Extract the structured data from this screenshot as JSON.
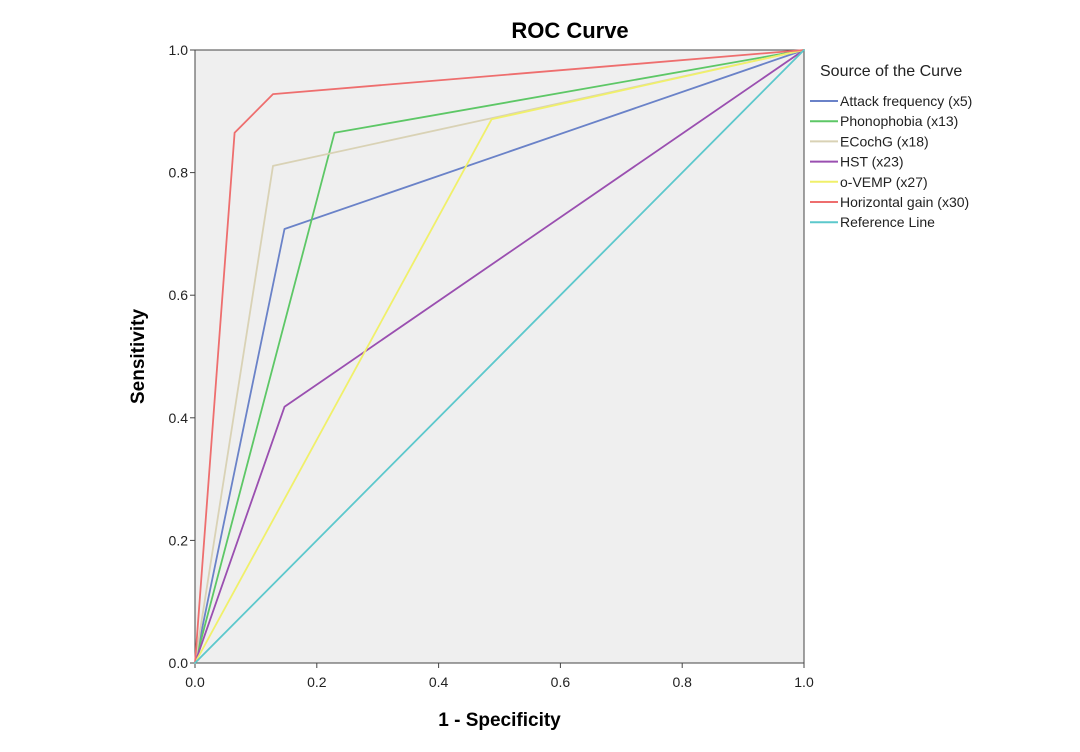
{
  "chart_data": {
    "type": "line",
    "title": "ROC Curve",
    "xlabel": "1 - Specificity",
    "ylabel": "Sensitivity",
    "xlim": [
      0,
      1
    ],
    "ylim": [
      0,
      1
    ],
    "xticks": [
      "0.0",
      "0.2",
      "0.4",
      "0.6",
      "0.8",
      "1.0"
    ],
    "yticks": [
      "0.0",
      "0.2",
      "0.4",
      "0.6",
      "0.8",
      "1.0"
    ],
    "grid": false,
    "background_color": "#efefef",
    "legend_title": "Source of the Curve",
    "legend_position": "right",
    "series": [
      {
        "name": "Attack frequency (x5)",
        "color": "#6a82c8",
        "x": [
          0,
          0.147,
          1
        ],
        "y": [
          0,
          0.708,
          1
        ]
      },
      {
        "name": "Phonophobia (x13)",
        "color": "#5dc766",
        "x": [
          0,
          0.229,
          1
        ],
        "y": [
          0,
          0.865,
          1
        ]
      },
      {
        "name": "ECochG (x18)",
        "color": "#d9d2b5",
        "x": [
          0,
          0.128,
          1
        ],
        "y": [
          0,
          0.811,
          1
        ]
      },
      {
        "name": "HST (x23)",
        "color": "#9a4fb0",
        "x": [
          0,
          0.147,
          1
        ],
        "y": [
          0,
          0.418,
          1
        ]
      },
      {
        "name": "o-VEMP (x27)",
        "color": "#f0f06a",
        "x": [
          0,
          0.487,
          1
        ],
        "y": [
          0,
          0.887,
          1
        ]
      },
      {
        "name": "Horizontal gain (x30)",
        "color": "#ee6e6e",
        "x": [
          0,
          0.065,
          0.128,
          1
        ],
        "y": [
          0,
          0.865,
          0.928,
          1
        ]
      },
      {
        "name": "Reference Line",
        "color": "#5cc8cc",
        "x": [
          0,
          1
        ],
        "y": [
          0,
          1
        ]
      }
    ]
  }
}
